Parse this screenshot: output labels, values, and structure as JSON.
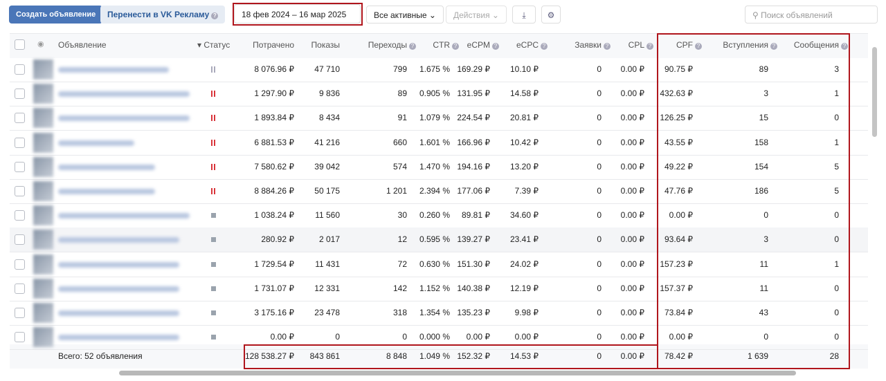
{
  "toolbar": {
    "create": "Создать объявление",
    "transfer": "Перенести в VK Рекламу",
    "date_range": "18 фев 2024 – 16 мар 2025",
    "filter": "Все активные",
    "actions": "Действия",
    "search": "Поиск объявлений"
  },
  "table": {
    "columns": [
      "Объявление",
      "Статус",
      "Потрачено",
      "Показы",
      "Переходы",
      "CTR",
      "eCPM",
      "eCPC",
      "Заявки",
      "CPL",
      "CPF",
      "Вступления",
      "Сообщения"
    ],
    "rows": [
      [
        "8 076.96 ₽",
        "47 710",
        "799",
        "1.675 %",
        "169.29 ₽",
        "10.10 ₽",
        "0",
        "0.00 ₽",
        "90.75 ₽",
        "89",
        "3"
      ],
      [
        "1 297.90 ₽",
        "9 836",
        "89",
        "0.905 %",
        "131.95 ₽",
        "14.58 ₽",
        "0",
        "0.00 ₽",
        "432.63 ₽",
        "3",
        "1"
      ],
      [
        "1 893.84 ₽",
        "8 434",
        "91",
        "1.079 %",
        "224.54 ₽",
        "20.81 ₽",
        "0",
        "0.00 ₽",
        "126.25 ₽",
        "15",
        "0"
      ],
      [
        "6 881.53 ₽",
        "41 216",
        "660",
        "1.601 %",
        "166.96 ₽",
        "10.42 ₽",
        "0",
        "0.00 ₽",
        "43.55 ₽",
        "158",
        "1"
      ],
      [
        "7 580.62 ₽",
        "39 042",
        "574",
        "1.470 %",
        "194.16 ₽",
        "13.20 ₽",
        "0",
        "0.00 ₽",
        "49.22 ₽",
        "154",
        "5"
      ],
      [
        "8 884.26 ₽",
        "50 175",
        "1 201",
        "2.394 %",
        "177.06 ₽",
        "7.39 ₽",
        "0",
        "0.00 ₽",
        "47.76 ₽",
        "186",
        "5"
      ],
      [
        "1 038.24 ₽",
        "11 560",
        "30",
        "0.260 %",
        "89.81 ₽",
        "34.60 ₽",
        "0",
        "0.00 ₽",
        "0.00 ₽",
        "0",
        "0"
      ],
      [
        "280.92 ₽",
        "2 017",
        "12",
        "0.595 %",
        "139.27 ₽",
        "23.41 ₽",
        "0",
        "0.00 ₽",
        "93.64 ₽",
        "3",
        "0"
      ],
      [
        "1 729.54 ₽",
        "11 431",
        "72",
        "0.630 %",
        "151.30 ₽",
        "24.02 ₽",
        "0",
        "0.00 ₽",
        "157.23 ₽",
        "11",
        "1"
      ],
      [
        "1 731.07 ₽",
        "12 331",
        "142",
        "1.152 %",
        "140.38 ₽",
        "12.19 ₽",
        "0",
        "0.00 ₽",
        "157.37 ₽",
        "11",
        "0"
      ],
      [
        "3 175.16 ₽",
        "23 478",
        "318",
        "1.354 %",
        "135.23 ₽",
        "9.98 ₽",
        "0",
        "0.00 ₽",
        "73.84 ₽",
        "43",
        "0"
      ],
      [
        "0.00 ₽",
        "0",
        "0",
        "0.000 %",
        "0.00 ₽",
        "0.00 ₽",
        "0",
        "0.00 ₽",
        "0.00 ₽",
        "0",
        "0"
      ]
    ],
    "total_label": "Всего: 52 объявления",
    "totals": [
      "128 538.27 ₽",
      "843 861",
      "8 848",
      "1.049 %",
      "152.32 ₽",
      "14.53 ₽",
      "0",
      "0.00 ₽",
      "78.42 ₽",
      "1 639",
      "28"
    ]
  }
}
